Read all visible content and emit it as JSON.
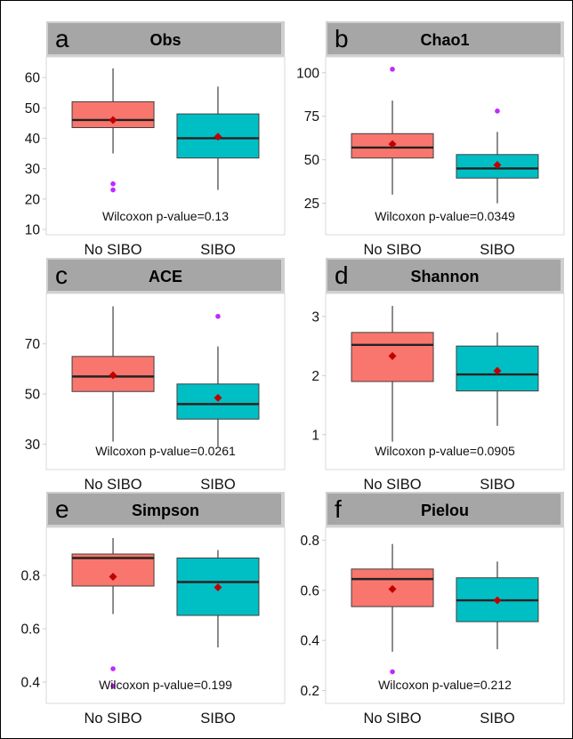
{
  "colors": {
    "no_sibo": "#f8766d",
    "sibo": "#00bfc4",
    "mean": "#c00000",
    "outlier": "#bf2bff",
    "strip": "#a6a6a6"
  },
  "chart_data": [
    {
      "type": "box",
      "letter": "a",
      "title": "Obs",
      "categories": [
        "No SIBO",
        "SIBO"
      ],
      "ylim": [
        10,
        65
      ],
      "yticks": [
        10,
        20,
        30,
        40,
        50,
        60
      ],
      "ytick_labels": [
        "10",
        "20",
        "30",
        "40",
        "50",
        "60"
      ],
      "boxes": [
        {
          "q1": 43.5,
          "median": 46,
          "q3": 52,
          "whisker_low": 35,
          "whisker_high": 63,
          "mean": 46,
          "outliers": [
            25,
            23
          ]
        },
        {
          "q1": 33.5,
          "median": 40,
          "q3": 48,
          "whisker_low": 23,
          "whisker_high": 57,
          "mean": 40.5,
          "outliers": []
        }
      ],
      "annotation": "Wilcoxon p-value=0.13"
    },
    {
      "type": "box",
      "letter": "b",
      "title": "Chao1",
      "categories": [
        "No SIBO",
        "SIBO"
      ],
      "ylim": [
        10,
        106
      ],
      "yticks": [
        25,
        50,
        75,
        100
      ],
      "ytick_labels": [
        "25",
        "50",
        "75",
        "100"
      ],
      "boxes": [
        {
          "q1": 51,
          "median": 57,
          "q3": 65,
          "whisker_low": 30,
          "whisker_high": 84,
          "mean": 59,
          "outliers": [
            102
          ]
        },
        {
          "q1": 39.5,
          "median": 45,
          "q3": 53,
          "whisker_low": 25,
          "whisker_high": 66,
          "mean": 47,
          "outliers": [
            78
          ]
        }
      ],
      "annotation": "Wilcoxon p-value=0.0349"
    },
    {
      "type": "box",
      "letter": "c",
      "title": "ACE",
      "categories": [
        "No SIBO",
        "SIBO"
      ],
      "ylim": [
        22,
        88
      ],
      "yticks": [
        30,
        50,
        70
      ],
      "ytick_labels": [
        "30",
        "50",
        "70"
      ],
      "boxes": [
        {
          "q1": 51,
          "median": 57,
          "q3": 65,
          "whisker_low": 31,
          "whisker_high": 85,
          "mean": 57.5,
          "outliers": []
        },
        {
          "q1": 40,
          "median": 46,
          "q3": 54,
          "whisker_low": 29,
          "whisker_high": 69,
          "mean": 48.5,
          "outliers": [
            81
          ]
        }
      ],
      "annotation": "Wilcoxon p-value=0.0261"
    },
    {
      "type": "box",
      "letter": "d",
      "title": "Shannon",
      "categories": [
        "No SIBO",
        "SIBO"
      ],
      "ylim": [
        0.5,
        3.3
      ],
      "yticks": [
        1,
        2,
        3
      ],
      "ytick_labels": [
        "1",
        "2",
        "3"
      ],
      "boxes": [
        {
          "q1": 1.9,
          "median": 2.52,
          "q3": 2.73,
          "whisker_low": 0.88,
          "whisker_high": 3.18,
          "mean": 2.33,
          "outliers": []
        },
        {
          "q1": 1.74,
          "median": 2.02,
          "q3": 2.5,
          "whisker_low": 1.15,
          "whisker_high": 2.73,
          "mean": 2.08,
          "outliers": []
        }
      ],
      "annotation": "Wilcoxon p-value=0.0905"
    },
    {
      "type": "box",
      "letter": "e",
      "title": "Simpson",
      "categories": [
        "No SIBO",
        "SIBO"
      ],
      "ylim": [
        0.34,
        0.96
      ],
      "yticks": [
        0.4,
        0.6,
        0.8
      ],
      "ytick_labels": [
        "0.4",
        "0.6",
        "0.8"
      ],
      "boxes": [
        {
          "q1": 0.76,
          "median": 0.865,
          "q3": 0.88,
          "whisker_low": 0.655,
          "whisker_high": 0.94,
          "mean": 0.795,
          "outliers": [
            0.45,
            0.385
          ]
        },
        {
          "q1": 0.65,
          "median": 0.775,
          "q3": 0.865,
          "whisker_low": 0.53,
          "whisker_high": 0.895,
          "mean": 0.755,
          "outliers": []
        }
      ],
      "annotation": "Wilcoxon p-value=0.199"
    },
    {
      "type": "box",
      "letter": "f",
      "title": "Pielou",
      "categories": [
        "No SIBO",
        "SIBO"
      ],
      "ylim": [
        0.17,
        0.83
      ],
      "yticks": [
        0.2,
        0.4,
        0.6,
        0.8
      ],
      "ytick_labels": [
        "0.2",
        "0.4",
        "0.6",
        "0.8"
      ],
      "boxes": [
        {
          "q1": 0.535,
          "median": 0.645,
          "q3": 0.685,
          "whisker_low": 0.355,
          "whisker_high": 0.785,
          "mean": 0.605,
          "outliers": [
            0.275
          ]
        },
        {
          "q1": 0.475,
          "median": 0.56,
          "q3": 0.65,
          "whisker_low": 0.365,
          "whisker_high": 0.715,
          "mean": 0.56,
          "outliers": []
        }
      ],
      "annotation": "Wilcoxon p-value=0.212"
    }
  ]
}
